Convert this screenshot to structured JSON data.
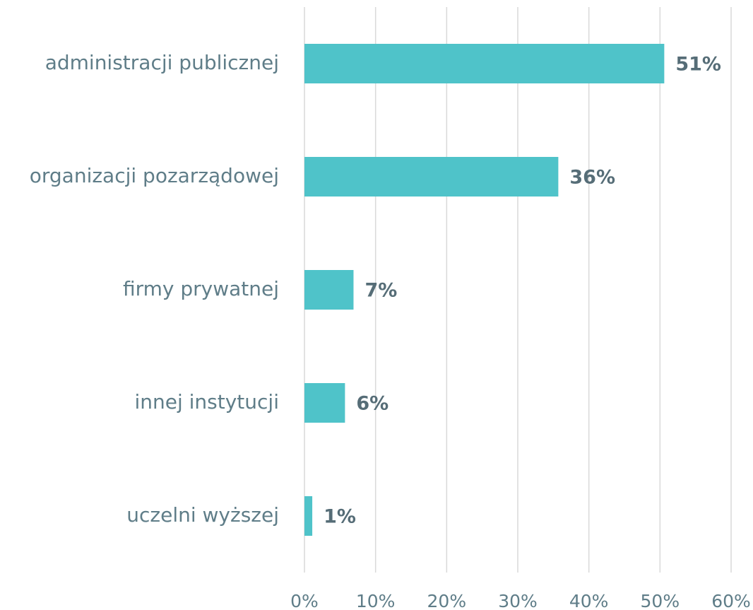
{
  "chart_data": {
    "type": "bar",
    "orientation": "horizontal",
    "categories": [
      "administracji publicznej",
      "organizacji pozarządowej",
      "firmy prywatnej",
      "innej instytucji",
      "uczelni wyższej"
    ],
    "values": [
      50.6,
      35.7,
      6.9,
      5.7,
      1.1
    ],
    "value_labels": [
      "51%",
      "36%",
      "7%",
      "6%",
      "1%"
    ],
    "color": "#4fc3c9",
    "xlim": [
      0,
      60
    ],
    "xticks": [
      {
        "value": 0,
        "label": "0%"
      },
      {
        "value": 10,
        "label": "10%"
      },
      {
        "value": 20,
        "label": "20%"
      },
      {
        "value": 30,
        "label": "30%"
      },
      {
        "value": 40,
        "label": "40%"
      },
      {
        "value": 50,
        "label": "50%"
      },
      {
        "value": 60,
        "label": "60%"
      }
    ],
    "grid": true
  }
}
